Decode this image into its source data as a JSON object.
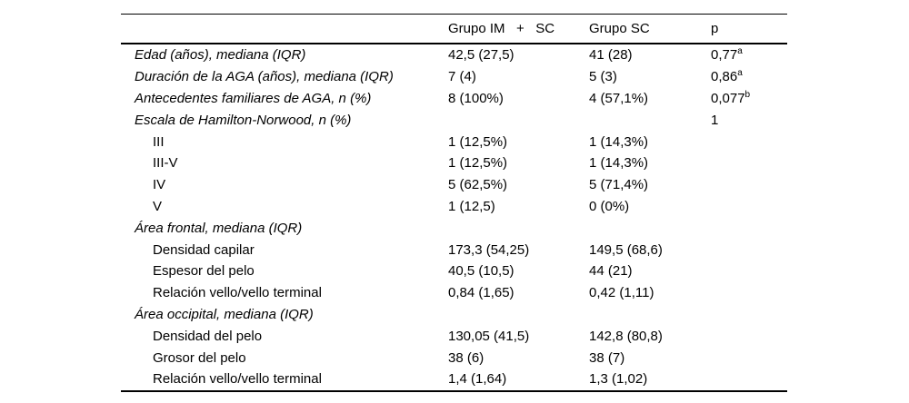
{
  "table": {
    "columns": [
      "",
      "Grupo IM   +   SC",
      "Grupo SC",
      "p"
    ],
    "rows": [
      {
        "label": "Edad (años), mediana (IQR)",
        "italic": true,
        "indent": false,
        "group_im_sc": "42,5 (27,5)",
        "group_sc": "41 (28)",
        "p": "0,77",
        "p_sup": "a"
      },
      {
        "label": "Duración de la AGA (años), mediana (IQR)",
        "italic": true,
        "indent": false,
        "group_im_sc": "7 (4)",
        "group_sc": "5 (3)",
        "p": "0,86",
        "p_sup": "a"
      },
      {
        "label": "Antecedentes familiares de AGA, n (%)",
        "italic": true,
        "indent": false,
        "group_im_sc": "8 (100%)",
        "group_sc": "4 (57,1%)",
        "p": "0,077",
        "p_sup": "b"
      },
      {
        "label": "Escala de Hamilton-Norwood, n (%)",
        "italic": true,
        "indent": false,
        "group_im_sc": "",
        "group_sc": "",
        "p": "1",
        "p_sup": ""
      },
      {
        "label": "III",
        "italic": false,
        "indent": true,
        "group_im_sc": "1 (12,5%)",
        "group_sc": "1 (14,3%)",
        "p": "",
        "p_sup": ""
      },
      {
        "label": "III-V",
        "italic": false,
        "indent": true,
        "group_im_sc": "1 (12,5%)",
        "group_sc": "1 (14,3%)",
        "p": "",
        "p_sup": ""
      },
      {
        "label": "IV",
        "italic": false,
        "indent": true,
        "group_im_sc": "5 (62,5%)",
        "group_sc": "5 (71,4%)",
        "p": "",
        "p_sup": ""
      },
      {
        "label": "V",
        "italic": false,
        "indent": true,
        "group_im_sc": "1 (12,5)",
        "group_sc": "0 (0%)",
        "p": "",
        "p_sup": ""
      },
      {
        "label": "Área frontal, mediana (IQR)",
        "italic": true,
        "indent": false,
        "group_im_sc": "",
        "group_sc": "",
        "p": "",
        "p_sup": ""
      },
      {
        "label": "Densidad capilar",
        "italic": false,
        "indent": true,
        "group_im_sc": "173,3 (54,25)",
        "group_sc": "149,5 (68,6)",
        "p": "",
        "p_sup": ""
      },
      {
        "label": "Espesor del pelo",
        "italic": false,
        "indent": true,
        "group_im_sc": "40,5 (10,5)",
        "group_sc": "44 (21)",
        "p": "",
        "p_sup": ""
      },
      {
        "label": "Relación vello/vello terminal",
        "italic": false,
        "indent": true,
        "group_im_sc": "0,84 (1,65)",
        "group_sc": "0,42 (1,11)",
        "p": "",
        "p_sup": ""
      },
      {
        "label": "Área occipital, mediana (IQR)",
        "italic": true,
        "indent": false,
        "group_im_sc": "",
        "group_sc": "",
        "p": "",
        "p_sup": ""
      },
      {
        "label": "Densidad del pelo",
        "italic": false,
        "indent": true,
        "group_im_sc": "130,05 (41,5)",
        "group_sc": "142,8 (80,8)",
        "p": "",
        "p_sup": ""
      },
      {
        "label": "Grosor del pelo",
        "italic": false,
        "indent": true,
        "group_im_sc": "38 (6)",
        "group_sc": "38 (7)",
        "p": "",
        "p_sup": ""
      },
      {
        "label": "Relación vello/vello terminal",
        "italic": false,
        "indent": true,
        "group_im_sc": "1,4 (1,64)",
        "group_sc": "1,3 (1,02)",
        "p": "",
        "p_sup": ""
      }
    ]
  },
  "colors": {
    "background": "#ffffff",
    "text": "#000000",
    "rule": "#000000"
  }
}
